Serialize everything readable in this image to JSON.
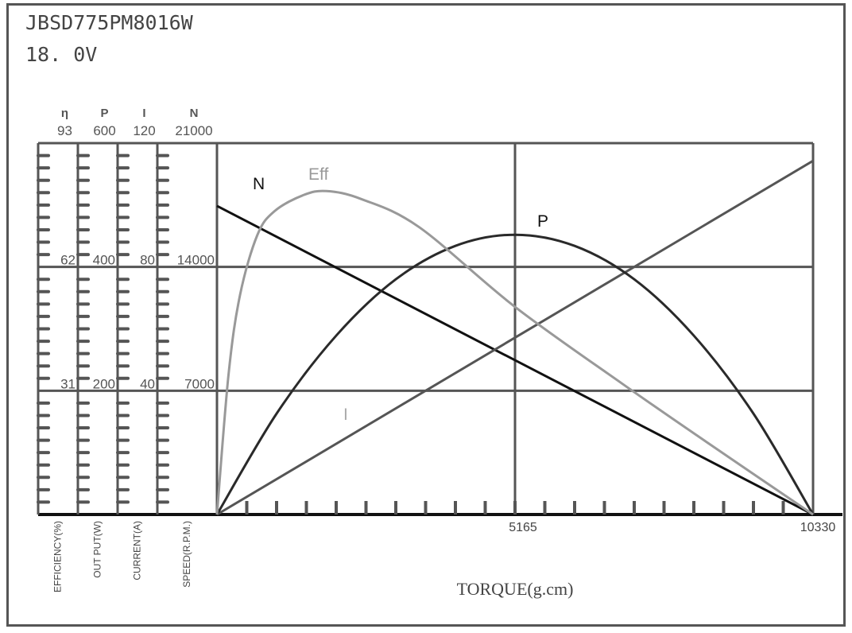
{
  "header": {
    "model": "JBSD775PM8016W",
    "voltage": "18. 0V"
  },
  "chart_data": {
    "type": "line",
    "xlabel": "TORQUE(g.cm)",
    "xlim": [
      0,
      10330
    ],
    "x_ticks": [
      "5165",
      "10330"
    ],
    "grid": true,
    "axes": [
      {
        "symbol": "η",
        "label": "EFFICIENCY(%)",
        "max": 93,
        "ticks": [
          "93",
          "62",
          "31"
        ]
      },
      {
        "symbol": "P",
        "label": "OUT PUT(W)",
        "max": 600,
        "ticks": [
          "600",
          "400",
          "200"
        ]
      },
      {
        "symbol": "I",
        "label": "CURRENT(A)",
        "max": 120,
        "ticks": [
          "120",
          "80",
          "40"
        ]
      },
      {
        "symbol": "N",
        "label": "SPEED(R.P.M.)",
        "max": 21000,
        "ticks": [
          "21000",
          "14000",
          "7000"
        ]
      }
    ],
    "series": [
      {
        "name": "N",
        "axis": 3,
        "color": "#111111",
        "points": [
          [
            0,
            17450
          ],
          [
            10330,
            0
          ]
        ]
      },
      {
        "name": "I",
        "axis": 2,
        "color": "#555555",
        "points": [
          [
            0,
            0
          ],
          [
            10330,
            114.3
          ]
        ]
      },
      {
        "name": "P",
        "axis": 1,
        "color": "#2a2a2a",
        "points": [
          [
            0,
            0
          ],
          [
            1033,
            163
          ],
          [
            2066,
            289
          ],
          [
            3099,
            380
          ],
          [
            4132,
            434
          ],
          [
            5165,
            452
          ],
          [
            6198,
            434
          ],
          [
            7231,
            380
          ],
          [
            8264,
            289
          ],
          [
            9297,
            163
          ],
          [
            10330,
            0
          ]
        ]
      },
      {
        "name": "Eff",
        "axis": 0,
        "color": "#999999",
        "points": [
          [
            0,
            0
          ],
          [
            200,
            35
          ],
          [
            400,
            55
          ],
          [
            700,
            70
          ],
          [
            1000,
            76
          ],
          [
            1500,
            80
          ],
          [
            1900,
            81
          ],
          [
            2500,
            79
          ],
          [
            3500,
            72
          ],
          [
            5165,
            52
          ],
          [
            7000,
            33
          ],
          [
            8500,
            18
          ],
          [
            10330,
            0
          ]
        ]
      }
    ]
  }
}
